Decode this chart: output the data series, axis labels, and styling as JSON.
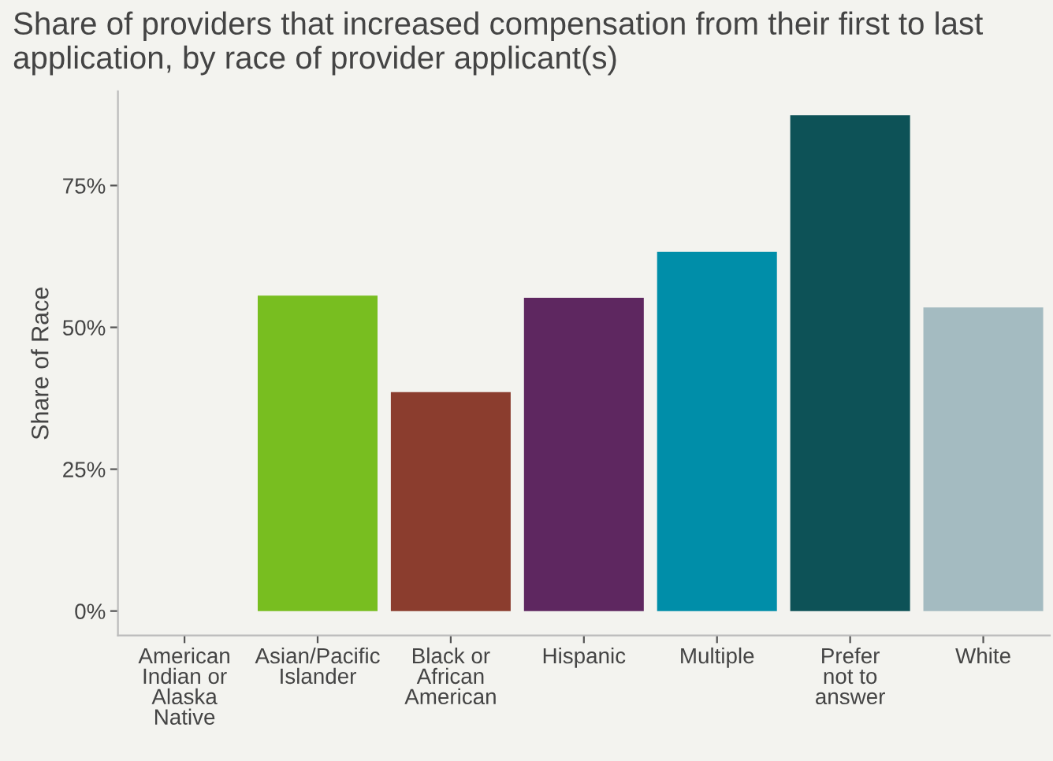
{
  "chart_data": {
    "type": "bar",
    "title": "Share of providers that increased compensation from their first to last application, by race of provider applicant(s)",
    "ylabel": "Share of Race",
    "categories": [
      "American\nIndian or\nAlaska\nNative",
      "Asian/Pacific\nIslander",
      "Black or\nAfrican\nAmerican",
      "Hispanic",
      "Multiple",
      "Prefer\nnot to\nanswer",
      "White"
    ],
    "values": [
      null,
      55.6,
      38.6,
      55.2,
      63.3,
      87.4,
      53.5
    ],
    "colors": [
      "#888888",
      "#78be20",
      "#8b3d2e",
      "#5e2760",
      "#008ea9",
      "#0d5257",
      "#a4bbc1"
    ],
    "ylim": [
      -4.3,
      91.6
    ],
    "yticks": [
      {
        "value": 0,
        "label": "0%"
      },
      {
        "value": 25,
        "label": "25%"
      },
      {
        "value": 50,
        "label": "50%"
      },
      {
        "value": 75,
        "label": "75%"
      }
    ],
    "grid": false,
    "legend": false
  }
}
